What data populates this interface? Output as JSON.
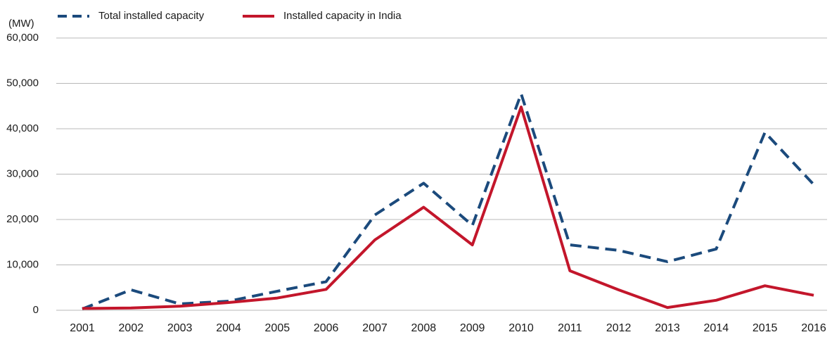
{
  "chart_data": {
    "type": "line",
    "y_label": "(MW)",
    "categories": [
      "2001",
      "2002",
      "2003",
      "2004",
      "2005",
      "2006",
      "2007",
      "2008",
      "2009",
      "2010",
      "2011",
      "2012",
      "2013",
      "2014",
      "2015",
      "2016"
    ],
    "series": [
      {
        "name": "Total installed capacity",
        "color": "#1b4a7c",
        "dash": true,
        "values": [
          300,
          4500,
          1400,
          2000,
          4200,
          6300,
          21000,
          28000,
          18700,
          47700,
          14400,
          13200,
          10700,
          13500,
          39200,
          27700
        ]
      },
      {
        "name": "Installed capacity in India",
        "color": "#c3162b",
        "dash": false,
        "values": [
          400,
          500,
          900,
          1700,
          2700,
          4600,
          15500,
          22700,
          14400,
          44800,
          8700,
          4500,
          600,
          2200,
          5400,
          3300
        ]
      }
    ],
    "ylim": [
      0,
      60000
    ],
    "yticks": [
      0,
      {
        "value": 10000,
        "label": "10,000"
      },
      {
        "value": 20000,
        "label": "20,000"
      },
      {
        "value": 30000,
        "label": "30,000"
      },
      {
        "value": 40000,
        "label": "40,000"
      },
      {
        "value": 50000,
        "label": "50,000"
      },
      {
        "value": 60000,
        "label": "60,000"
      }
    ],
    "grid": true
  }
}
